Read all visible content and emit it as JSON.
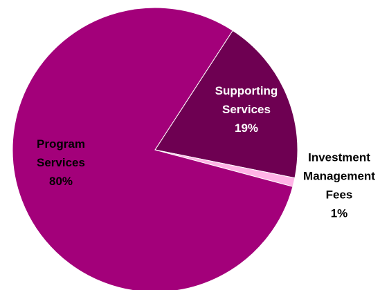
{
  "chart_data": {
    "type": "pie",
    "title": "",
    "slices": [
      {
        "name_lines": [
          "Supporting",
          "Services"
        ],
        "pct_label": "19%",
        "value": 19,
        "color": "#6e0052",
        "label_color": "#ffffff"
      },
      {
        "name_lines": [
          "Investment",
          "Management",
          "Fees"
        ],
        "pct_label": "1%",
        "value": 1,
        "color": "#ffb3e6",
        "label_color": "#000000"
      },
      {
        "name_lines": [
          "Program",
          "Services"
        ],
        "pct_label": "80%",
        "value": 80,
        "color": "#a3007a",
        "label_color": "#000000"
      }
    ],
    "legend": "none"
  }
}
